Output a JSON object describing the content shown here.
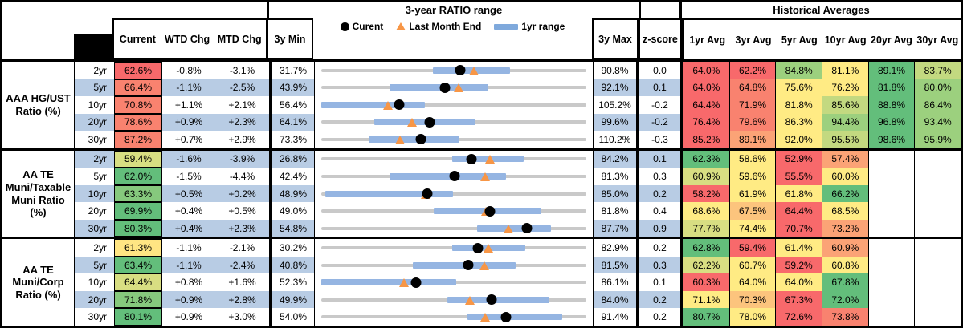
{
  "palette": {
    "R": "#F8696B",
    "S": "#F9826F",
    "O": "#FBA376",
    "LO": "#FCC47D",
    "Y": "#FFEB84",
    "PY": "#FFE583",
    "YG": "#D8DE82",
    "LYG": "#C3D980",
    "MG": "#86C97D",
    "LG": "#9CD07E",
    "G": "#63BE7B"
  },
  "colors": {
    "row_alt_blue": "#B8CCE4",
    "row_white": "#FFFFFF",
    "bar_blue": "#95B5E2",
    "legend_bar_blue": "#7FA9DC",
    "line_gray": "#C9C9C9",
    "triangle_orange": "#F79646",
    "dot_black": "#000000"
  },
  "header": {
    "range_title": "3-year RATIO range",
    "hist_title": "Historical Averages",
    "col_current": "Current",
    "col_wtd": "WTD Chg",
    "col_mtd": "MTD Chg",
    "col_3ymin": "3y Min",
    "col_3ymax": "3y Max",
    "col_zscore": "z-score",
    "avg_cols": [
      "1yr Avg",
      "3yr Avg",
      "5yr Avg",
      "10yr Avg",
      "20yr Avg",
      "30yr Avg"
    ],
    "legend": {
      "current_label": "Curent",
      "last_month_label": "Last Month End",
      "range_label": "1yr range"
    }
  },
  "chart_data": {
    "type": "table",
    "title": "3-year RATIO range",
    "x_scale": "each row is a bullet chart on a linear scale from its 3y Min to its 3y Max; dot = Current, triangle = Last Month End (Current - MTD Chg), blue bar = estimated 1yr range",
    "sections": [
      {
        "label": "AAA HG/UST\nRatio (%)",
        "rows": [
          {
            "tenor": "2yr",
            "current": "62.6%",
            "cc": "R",
            "wtd": "-0.8%",
            "mtd": "-3.1%",
            "min": "31.7%",
            "max": "90.8%",
            "range1y": [
              56.5,
              73.8
            ],
            "z": "0.0",
            "avgs": [
              [
                "64.0%",
                "R"
              ],
              [
                "62.2%",
                "R"
              ],
              [
                "84.8%",
                "LG"
              ],
              [
                "81.1%",
                "Y"
              ],
              [
                "89.1%",
                "G"
              ],
              [
                "83.7%",
                "LYG"
              ]
            ]
          },
          {
            "tenor": "5yr",
            "current": "66.4%",
            "cc": "S",
            "wtd": "-1.1%",
            "mtd": "-2.5%",
            "min": "43.9%",
            "max": "92.1%",
            "range1y": [
              56.3,
              74.3
            ],
            "z": "0.1",
            "avgs": [
              [
                "64.0%",
                "R"
              ],
              [
                "64.8%",
                "S"
              ],
              [
                "75.6%",
                "Y"
              ],
              [
                "76.2%",
                "Y"
              ],
              [
                "81.8%",
                "G"
              ],
              [
                "80.0%",
                "LG"
              ]
            ]
          },
          {
            "tenor": "10yr",
            "current": "70.8%",
            "cc": "S",
            "wtd": "+1.1%",
            "mtd": "+2.1%",
            "min": "56.4%",
            "max": "105.2%",
            "range1y": [
              56.4,
              75.5
            ],
            "z": "-0.2",
            "avgs": [
              [
                "64.4%",
                "R"
              ],
              [
                "71.9%",
                "S"
              ],
              [
                "81.8%",
                "Y"
              ],
              [
                "85.6%",
                "LYG"
              ],
              [
                "88.8%",
                "G"
              ],
              [
                "86.4%",
                "LG"
              ]
            ]
          },
          {
            "tenor": "20yr",
            "current": "78.6%",
            "cc": "S",
            "wtd": "+0.9%",
            "mtd": "+2.3%",
            "min": "64.1%",
            "max": "99.6%",
            "range1y": [
              71.2,
              84.8
            ],
            "z": "-0.2",
            "avgs": [
              [
                "76.4%",
                "R"
              ],
              [
                "79.6%",
                "S"
              ],
              [
                "86.3%",
                "Y"
              ],
              [
                "94.4%",
                "LG"
              ],
              [
                "96.8%",
                "G"
              ],
              [
                "93.4%",
                "LG"
              ]
            ]
          },
          {
            "tenor": "30yr",
            "current": "87.2%",
            "cc": "S",
            "wtd": "+0.7%",
            "mtd": "+2.9%",
            "min": "73.3%",
            "max": "110.2%",
            "range1y": [
              79.9,
              92.5
            ],
            "z": "-0.3",
            "avgs": [
              [
                "85.2%",
                "R"
              ],
              [
                "89.1%",
                "O"
              ],
              [
                "92.0%",
                "Y"
              ],
              [
                "95.5%",
                "LYG"
              ],
              [
                "98.6%",
                "G"
              ],
              [
                "95.9%",
                "LG"
              ]
            ]
          }
        ]
      },
      {
        "label": "AA TE\nMuni/Taxable\nMuni Ratio\n(%)",
        "rows": [
          {
            "tenor": "2yr",
            "current": "59.4%",
            "cc": "YG",
            "wtd": "-1.6%",
            "mtd": "-3.9%",
            "min": "26.8%",
            "max": "84.2%",
            "range1y": [
              55.2,
              70.6
            ],
            "z": "0.1",
            "avgs": [
              [
                "62.3%",
                "G"
              ],
              [
                "58.6%",
                "Y"
              ],
              [
                "52.9%",
                "R"
              ],
              [
                "57.4%",
                "O"
              ],
              null,
              null
            ]
          },
          {
            "tenor": "5yr",
            "current": "62.0%",
            "cc": "G",
            "wtd": "-1.5%",
            "mtd": "-4.4%",
            "min": "42.4%",
            "max": "81.3%",
            "range1y": [
              52.4,
              69.5
            ],
            "z": "0.3",
            "avgs": [
              [
                "60.9%",
                "YG"
              ],
              [
                "59.6%",
                "Y"
              ],
              [
                "55.5%",
                "R"
              ],
              [
                "60.0%",
                "Y"
              ],
              null,
              null
            ]
          },
          {
            "tenor": "10yr",
            "current": "63.3%",
            "cc": "MG",
            "wtd": "+0.5%",
            "mtd": "+0.2%",
            "min": "48.9%",
            "max": "85.0%",
            "range1y": [
              49.4,
              66.8
            ],
            "z": "0.2",
            "avgs": [
              [
                "58.2%",
                "R"
              ],
              [
                "61.9%",
                "Y"
              ],
              [
                "61.8%",
                "Y"
              ],
              [
                "66.2%",
                "G"
              ],
              null,
              null
            ]
          },
          {
            "tenor": "20yr",
            "current": "69.9%",
            "cc": "G",
            "wtd": "+0.4%",
            "mtd": "+0.5%",
            "min": "49.0%",
            "max": "81.8%",
            "range1y": [
              62.9,
              76.2
            ],
            "z": "0.4",
            "avgs": [
              [
                "68.6%",
                "Y"
              ],
              [
                "67.5%",
                "LO"
              ],
              [
                "64.4%",
                "R"
              ],
              [
                "68.5%",
                "Y"
              ],
              null,
              null
            ]
          },
          {
            "tenor": "30yr",
            "current": "80.3%",
            "cc": "G",
            "wtd": "+0.4%",
            "mtd": "+2.3%",
            "min": "54.8%",
            "max": "87.7%",
            "range1y": [
              74.1,
              83.3
            ],
            "z": "0.9",
            "avgs": [
              [
                "77.7%",
                "YG"
              ],
              [
                "74.4%",
                "Y"
              ],
              [
                "70.7%",
                "R"
              ],
              [
                "73.2%",
                "O"
              ],
              null,
              null
            ]
          }
        ]
      },
      {
        "label": "AA TE\nMuni/Corp\nRatio (%)",
        "rows": [
          {
            "tenor": "2yr",
            "current": "61.3%",
            "cc": "PY",
            "wtd": "-1.1%",
            "mtd": "-2.1%",
            "min": "30.2%",
            "max": "82.9%",
            "range1y": [
              56.2,
              70.7
            ],
            "z": "0.2",
            "avgs": [
              [
                "62.8%",
                "G"
              ],
              [
                "59.4%",
                "R"
              ],
              [
                "61.4%",
                "Y"
              ],
              [
                "60.9%",
                "O"
              ],
              null,
              null
            ]
          },
          {
            "tenor": "5yr",
            "current": "63.4%",
            "cc": "G",
            "wtd": "-1.1%",
            "mtd": "-2.4%",
            "min": "40.8%",
            "max": "81.5%",
            "range1y": [
              54.8,
              70.6
            ],
            "z": "0.3",
            "avgs": [
              [
                "62.2%",
                "YG"
              ],
              [
                "60.7%",
                "Y"
              ],
              [
                "59.2%",
                "R"
              ],
              [
                "60.8%",
                "Y"
              ],
              null,
              null
            ]
          },
          {
            "tenor": "10yr",
            "current": "64.4%",
            "cc": "YG",
            "wtd": "+0.8%",
            "mtd": "+1.6%",
            "min": "52.3%",
            "max": "86.1%",
            "range1y": [
              52.3,
              69.5
            ],
            "z": "0.1",
            "avgs": [
              [
                "60.3%",
                "R"
              ],
              [
                "64.0%",
                "Y"
              ],
              [
                "64.0%",
                "Y"
              ],
              [
                "67.8%",
                "G"
              ],
              null,
              null
            ]
          },
          {
            "tenor": "20yr",
            "current": "71.8%",
            "cc": "MG",
            "wtd": "+0.9%",
            "mtd": "+2.8%",
            "min": "49.9%",
            "max": "84.0%",
            "range1y": [
              66.1,
              79.2
            ],
            "z": "0.2",
            "avgs": [
              [
                "71.1%",
                "Y"
              ],
              [
                "70.3%",
                "LO"
              ],
              [
                "67.3%",
                "R"
              ],
              [
                "72.0%",
                "G"
              ],
              null,
              null
            ]
          },
          {
            "tenor": "30yr",
            "current": "80.1%",
            "cc": "G",
            "wtd": "+0.9%",
            "mtd": "+3.0%",
            "min": "54.0%",
            "max": "91.4%",
            "range1y": [
              74.6,
              88.0
            ],
            "z": "0.2",
            "avgs": [
              [
                "80.7%",
                "G"
              ],
              [
                "78.0%",
                "Y"
              ],
              [
                "72.6%",
                "R"
              ],
              [
                "73.8%",
                "S"
              ],
              null,
              null
            ]
          }
        ]
      }
    ]
  }
}
